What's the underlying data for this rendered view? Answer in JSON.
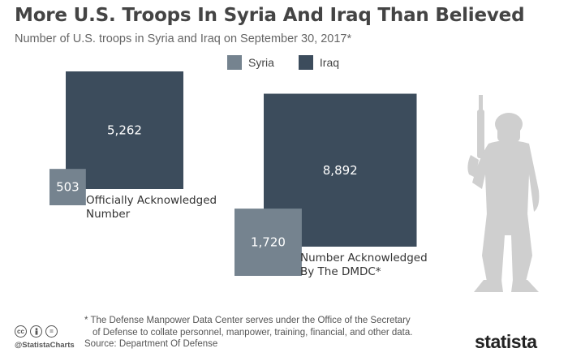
{
  "title": "More U.S. Troops In Syria And Iraq Than Believed",
  "subtitle": "Number of U.S. troops in Syria and Iraq on September 30, 2017*",
  "colors": {
    "syria": "#75838f",
    "iraq": "#3c4c5c"
  },
  "chart_data": {
    "type": "bar",
    "categories": [
      "Officially Acknowledged Number",
      "Number Acknowledged By The DMDC*"
    ],
    "series": [
      {
        "name": "Syria",
        "values": [
          503,
          1720
        ]
      },
      {
        "name": "Iraq",
        "values": [
          5262,
          8892
        ]
      }
    ],
    "value_labels": [
      [
        "503",
        "5,262"
      ],
      [
        "1,720",
        "8,892"
      ]
    ],
    "category_lines": [
      [
        "Officially Acknowledged",
        "Number"
      ],
      [
        "Number Acknowledged",
        "By The DMDC*"
      ]
    ],
    "legend_position": "top"
  },
  "footnote_line1": "* The Defense Manpower Data Center serves under the Office of the Secretary",
  "footnote_line2": "of Defense to collate personnel, manpower, training, financial, and other data.",
  "source": "Source: Department Of Defense",
  "handle": "@StatistaCharts",
  "logo": "statista",
  "icons": [
    "cc-icon",
    "person-icon",
    "equals-icon",
    "soldier-silhouette-icon",
    "statista-logo-icon"
  ]
}
